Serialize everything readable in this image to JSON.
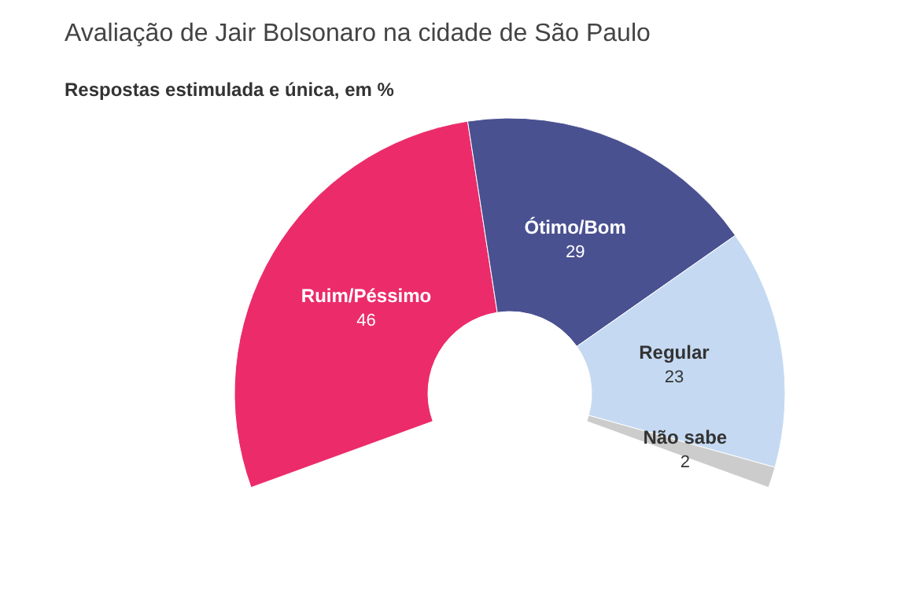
{
  "chart_data": {
    "type": "donut",
    "title": "Avaliação de Jair Bolsonaro na cidade de São Paulo",
    "subtitle": "Respostas estimulada e única, em %",
    "categories": [
      "Ruim/Péssimo",
      "Ótimo/Bom",
      "Regular",
      "Não sabe"
    ],
    "values": [
      46,
      29,
      23,
      2
    ],
    "colors": [
      "#ec2b6b",
      "#4a5191",
      "#c5daf2",
      "#cccccc"
    ],
    "data_labels": true
  }
}
